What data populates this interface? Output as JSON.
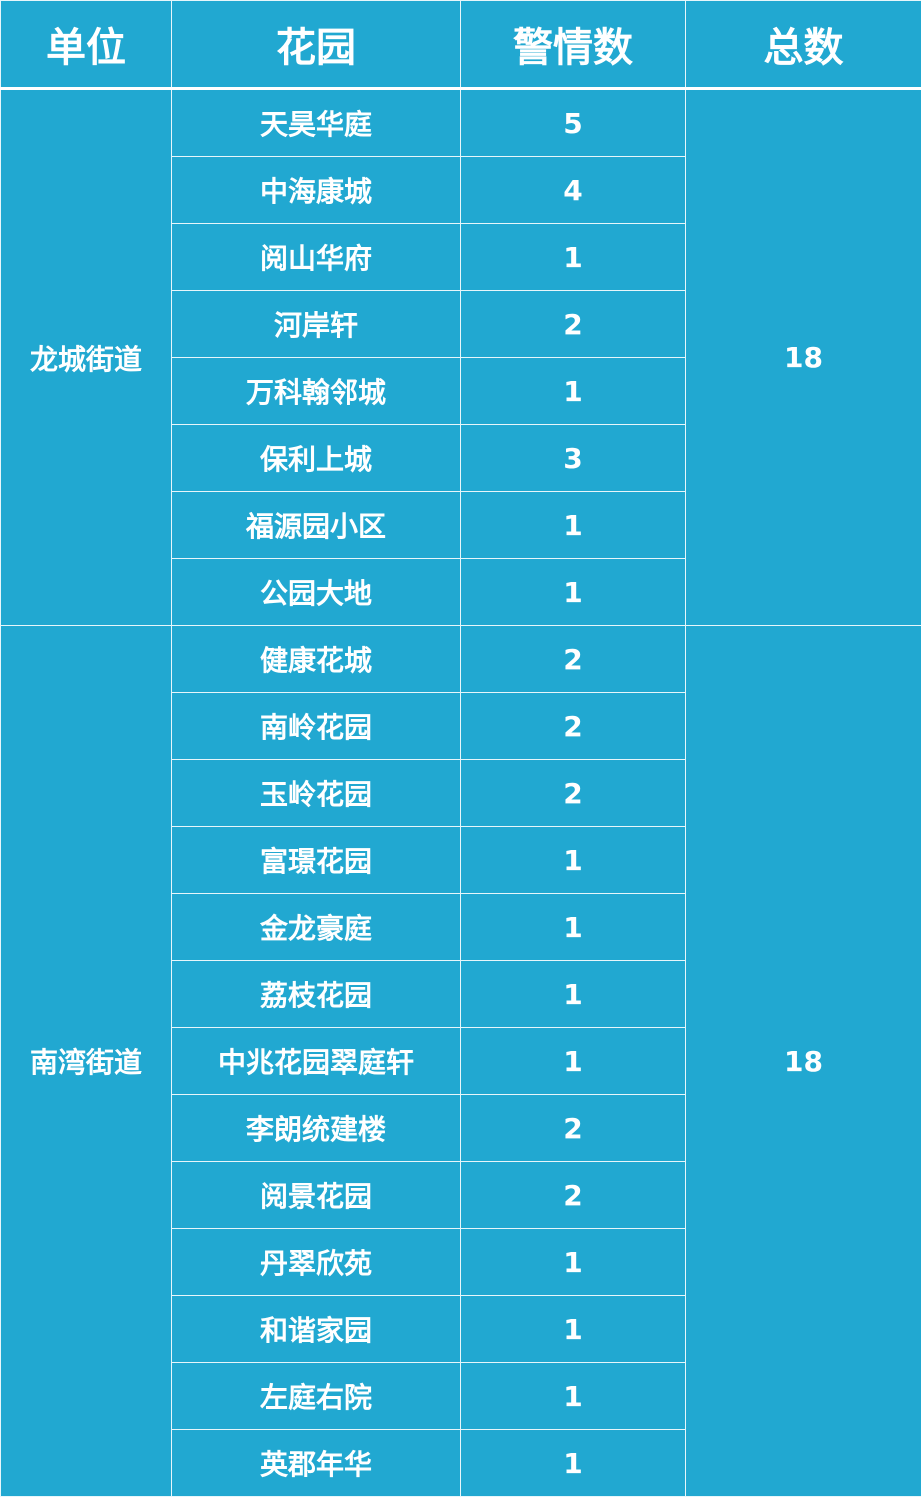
{
  "table": {
    "headers": [
      "单位",
      "花园",
      "警情数",
      "总数"
    ],
    "colors": {
      "background": "#21a8d1",
      "text": "#ffffff",
      "border": "#ffffff"
    },
    "groups": [
      {
        "unit": "龙城街道",
        "total": "18",
        "rows": [
          {
            "garden": "天昊华庭",
            "count": "5"
          },
          {
            "garden": "中海康城",
            "count": "4"
          },
          {
            "garden": "阅山华府",
            "count": "1"
          },
          {
            "garden": "河岸轩",
            "count": "2"
          },
          {
            "garden": "万科翰邻城",
            "count": "1"
          },
          {
            "garden": "保利上城",
            "count": "3"
          },
          {
            "garden": "福源园小区",
            "count": "1"
          },
          {
            "garden": "公园大地",
            "count": "1"
          }
        ]
      },
      {
        "unit": "南湾街道",
        "total": "18",
        "rows": [
          {
            "garden": "健康花城",
            "count": "2"
          },
          {
            "garden": "南岭花园",
            "count": "2"
          },
          {
            "garden": "玉岭花园",
            "count": "2"
          },
          {
            "garden": "富璟花园",
            "count": "1"
          },
          {
            "garden": "金龙豪庭",
            "count": "1"
          },
          {
            "garden": "荔枝花园",
            "count": "1"
          },
          {
            "garden": "中兆花园翠庭轩",
            "count": "1"
          },
          {
            "garden": "李朗统建楼",
            "count": "2"
          },
          {
            "garden": "阅景花园",
            "count": "2"
          },
          {
            "garden": "丹翠欣苑",
            "count": "1"
          },
          {
            "garden": "和谐家园",
            "count": "1"
          },
          {
            "garden": "左庭右院",
            "count": "1"
          },
          {
            "garden": "英郡年华",
            "count": "1"
          }
        ]
      }
    ]
  }
}
